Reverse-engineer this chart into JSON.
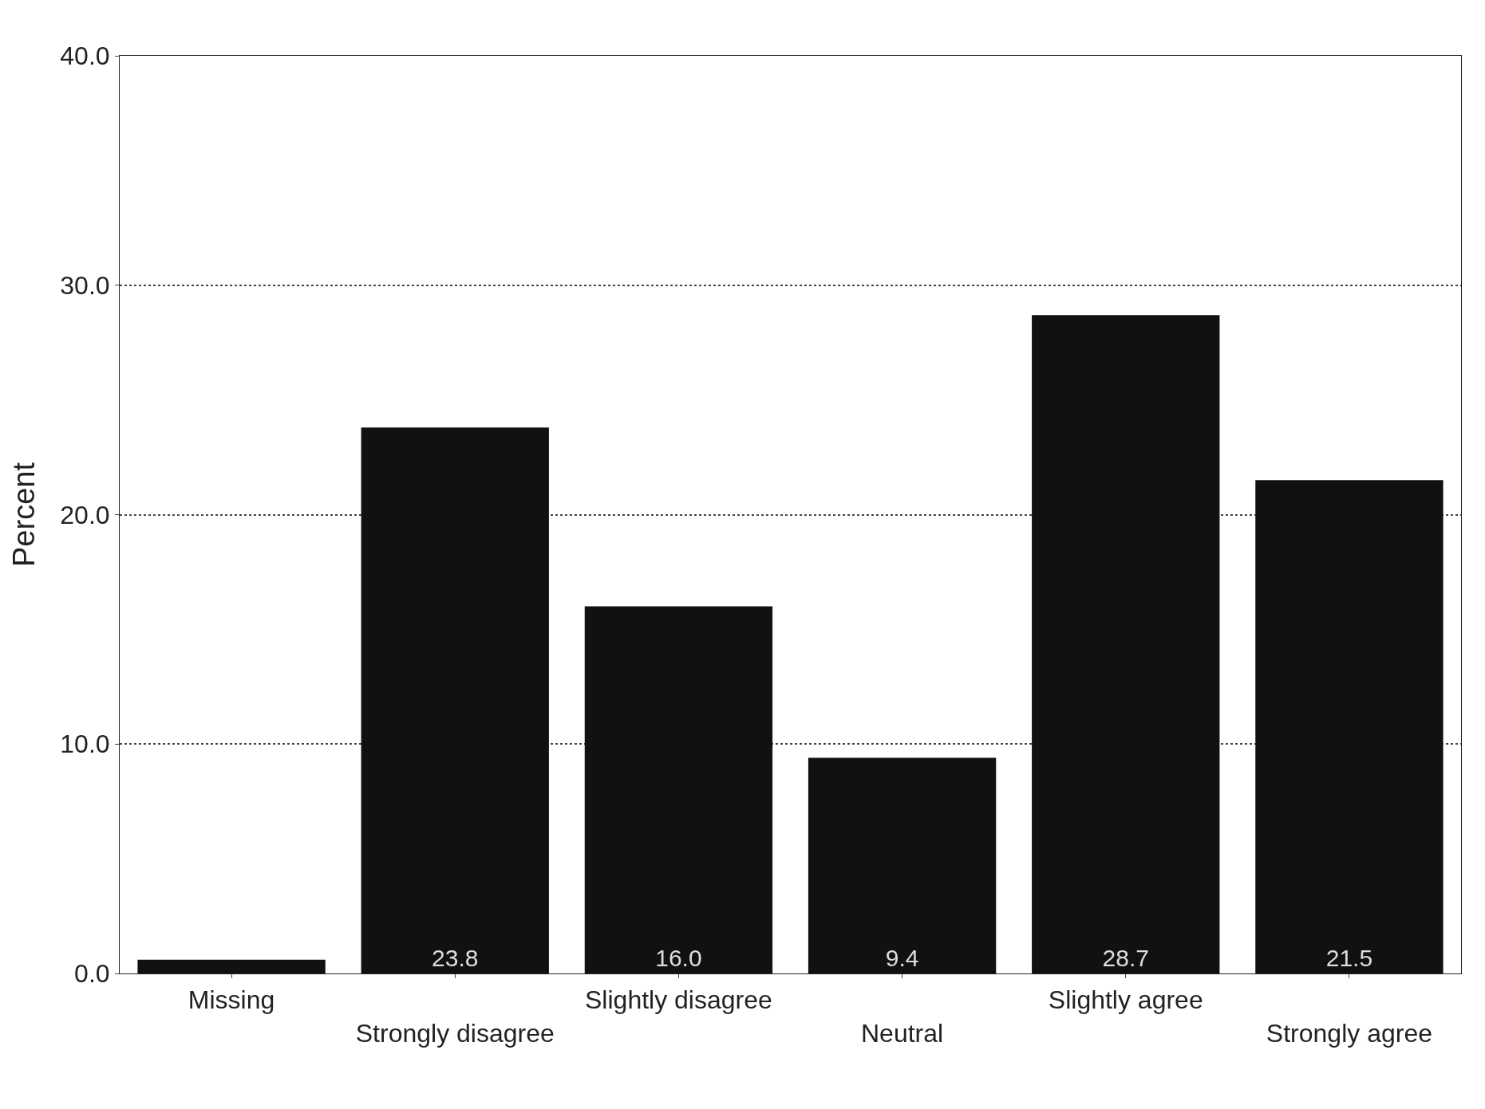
{
  "chart_data": {
    "type": "bar",
    "ylabel": "Percent",
    "categories": [
      "Missing",
      "Strongly disagree",
      "Slightly disagree",
      "Neutral",
      "Slightly agree",
      "Strongly agree"
    ],
    "values": [
      0.6,
      23.8,
      16.0,
      9.4,
      28.7,
      21.5
    ],
    "value_labels": [
      null,
      "23.8",
      "16.0",
      "9.4",
      "28.7",
      "21.5"
    ],
    "color": "#111111",
    "ylim": [
      0,
      40
    ],
    "yticks": [
      {
        "value": 0,
        "label": "0.0"
      },
      {
        "value": 10,
        "label": "10.0"
      },
      {
        "value": 20,
        "label": "20.0"
      },
      {
        "value": 30,
        "label": "30.0"
      },
      {
        "value": 40,
        "label": "40.0"
      }
    ],
    "grid": "y",
    "line_style": "dotted"
  }
}
